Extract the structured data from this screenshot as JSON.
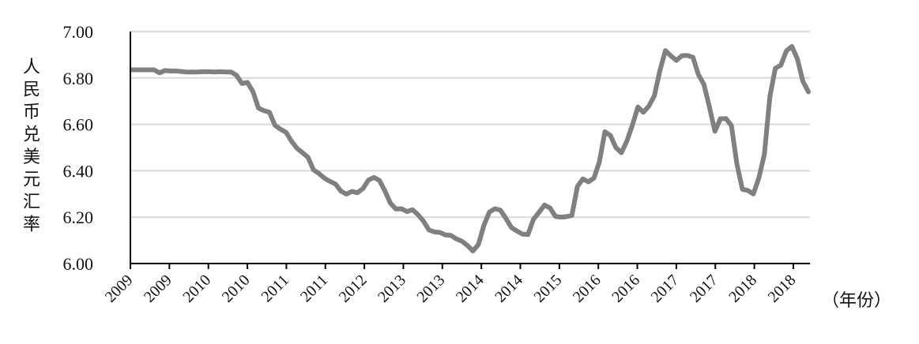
{
  "chart_data": {
    "type": "line",
    "ylabel": "人民币兑美元汇率",
    "xunit": "（年份）",
    "ylim": [
      6.0,
      7.0
    ],
    "yticks": [
      "6.00",
      "6.20",
      "6.40",
      "6.60",
      "6.80",
      "7.00"
    ],
    "xticks": [
      "2009",
      "2009",
      "2010",
      "2010",
      "2011",
      "2011",
      "2012",
      "2013",
      "2013",
      "2014",
      "2014",
      "2015",
      "2016",
      "2016",
      "2017",
      "2017",
      "2018",
      "2018"
    ],
    "grid": "horizontal",
    "colors": {
      "line": "#808080",
      "grid": "#d9d9d9",
      "axis": "#000000"
    },
    "series": [
      {
        "values": [
          6.835,
          6.835,
          6.835,
          6.835,
          6.835,
          6.822,
          6.832,
          6.83,
          6.83,
          6.828,
          6.825,
          6.826,
          6.826,
          6.827,
          6.827,
          6.826,
          6.827,
          6.826,
          6.826,
          6.812,
          6.776,
          6.781,
          6.741,
          6.67,
          6.659,
          6.652,
          6.596,
          6.579,
          6.566,
          6.528,
          6.497,
          6.478,
          6.458,
          6.404,
          6.388,
          6.368,
          6.354,
          6.343,
          6.312,
          6.299,
          6.311,
          6.305,
          6.323,
          6.36,
          6.371,
          6.358,
          6.313,
          6.26,
          6.235,
          6.236,
          6.224,
          6.232,
          6.211,
          6.183,
          6.145,
          6.136,
          6.134,
          6.123,
          6.121,
          6.106,
          6.096,
          6.078,
          6.054,
          6.082,
          6.165,
          6.222,
          6.236,
          6.23,
          6.195,
          6.155,
          6.14,
          6.127,
          6.125,
          6.19,
          6.22,
          6.252,
          6.24,
          6.203,
          6.2,
          6.202,
          6.207,
          6.332,
          6.365,
          6.352,
          6.368,
          6.438,
          6.568,
          6.552,
          6.5,
          6.478,
          6.528,
          6.597,
          6.675,
          6.652,
          6.679,
          6.723,
          6.832,
          6.918,
          6.895,
          6.876,
          6.896,
          6.897,
          6.889,
          6.815,
          6.772,
          6.676,
          6.57,
          6.624,
          6.625,
          6.595,
          6.43,
          6.32,
          6.315,
          6.3,
          6.37,
          6.47,
          6.72,
          6.842,
          6.855,
          6.917,
          6.936,
          6.882,
          6.786,
          6.74
        ]
      }
    ]
  }
}
